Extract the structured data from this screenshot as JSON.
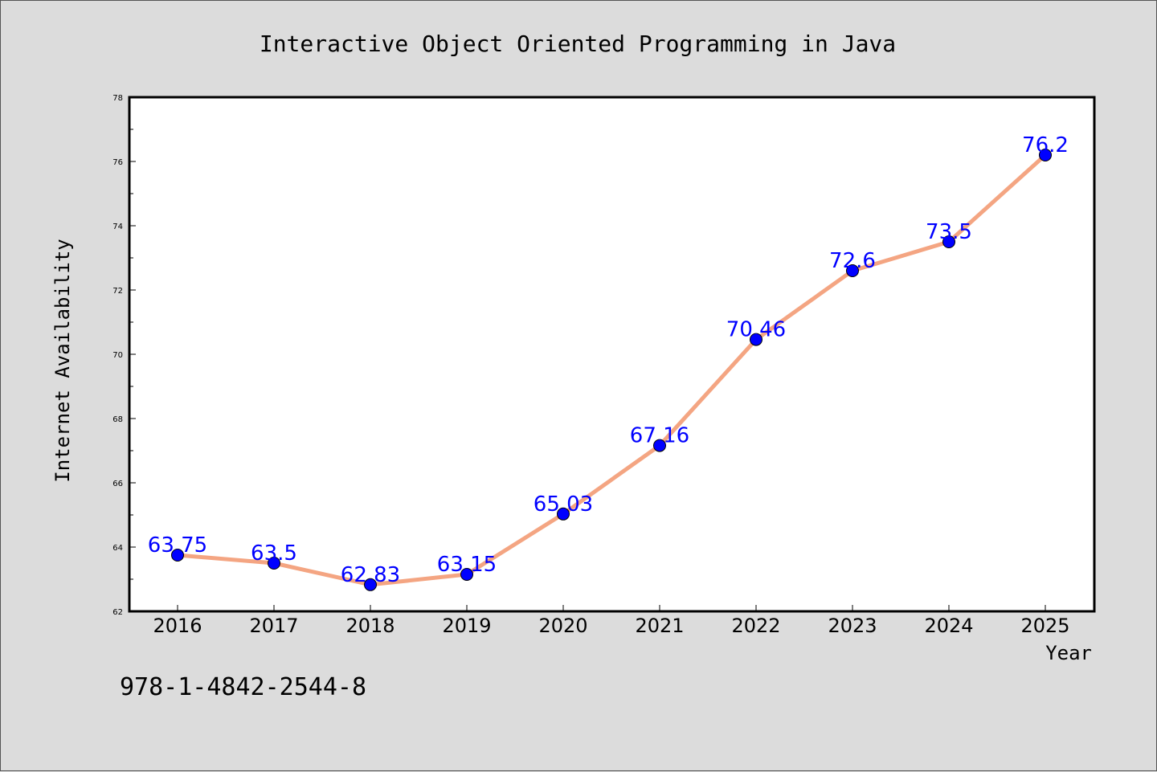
{
  "chart_data": {
    "type": "line",
    "title": "Interactive Object Oriented Programming in Java",
    "xlabel": "Year",
    "ylabel": "Internet Availability",
    "categories": [
      "2016",
      "2017",
      "2018",
      "2019",
      "2020",
      "2021",
      "2022",
      "2023",
      "2024",
      "2025"
    ],
    "series": [
      {
        "values": [
          63.75,
          63.5,
          62.83,
          63.15,
          65.03,
          67.16,
          70.46,
          72.6,
          73.5,
          76.2
        ],
        "labels": [
          "63.75",
          "63.5",
          "62.83",
          "63.15",
          "65.03",
          "67.16",
          "70.46",
          "72.6",
          "73.5",
          "76.2"
        ],
        "line_color": "#f4a582",
        "marker_color": "#0000ff"
      }
    ],
    "ylim": [
      62,
      78
    ],
    "yticks": [
      "62",
      "64",
      "66",
      "68",
      "70",
      "72",
      "74",
      "76",
      "78"
    ],
    "grid": false,
    "legend": "none"
  },
  "footer": {
    "isbn": "978-1-4842-2544-8"
  },
  "colors": {
    "background": "#dcdcdc",
    "plot_background": "#ffffff",
    "line": "#f4a582",
    "marker": "#0000ff",
    "data_label": "#0000ff"
  }
}
